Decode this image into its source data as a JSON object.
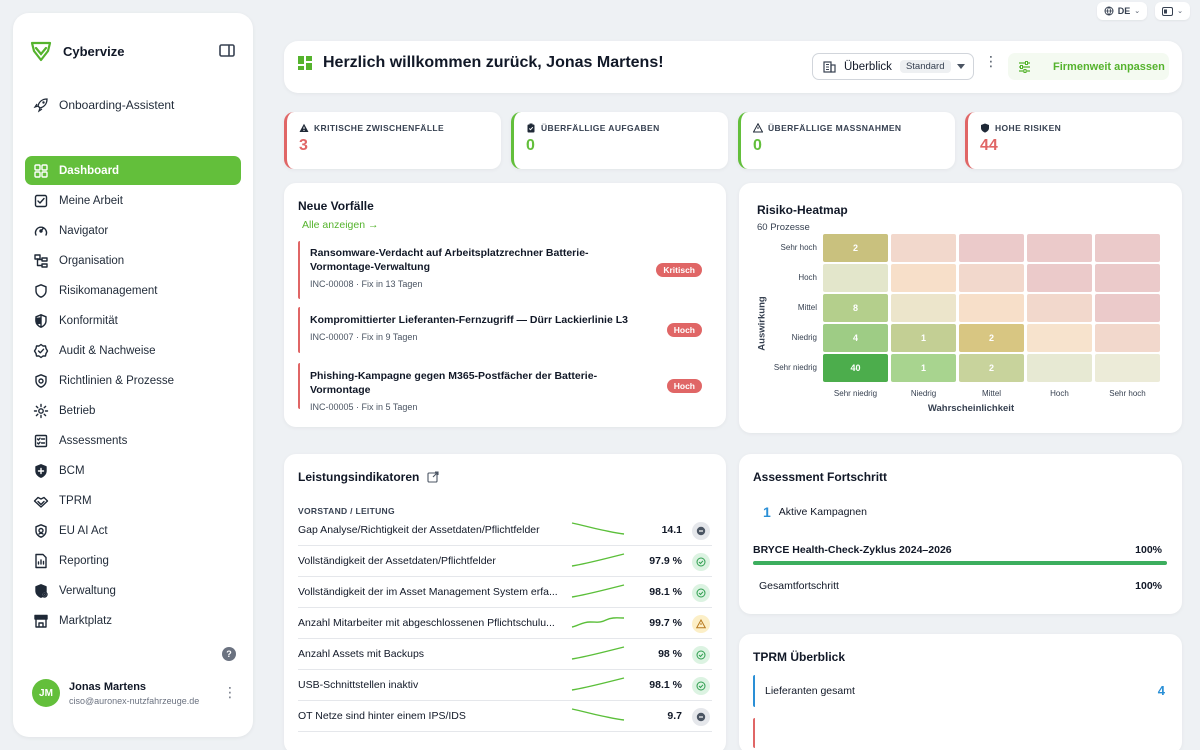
{
  "topbar": {
    "language": "DE"
  },
  "brand": {
    "name": "Cybervize"
  },
  "sidebar": {
    "onboarding": "Onboarding-Assistent",
    "items": [
      {
        "label": "Dashboard",
        "icon": "grid-icon"
      },
      {
        "label": "Meine Arbeit",
        "icon": "checklist-icon"
      },
      {
        "label": "Navigator",
        "icon": "compass-icon"
      },
      {
        "label": "Organisation",
        "icon": "org-chart-icon"
      },
      {
        "label": "Risikomanagement",
        "icon": "shield-icon"
      },
      {
        "label": "Konformität",
        "icon": "shield-half-icon"
      },
      {
        "label": "Audit & Nachweise",
        "icon": "badge-check-icon"
      },
      {
        "label": "Richtlinien & Prozesse",
        "icon": "policy-icon"
      },
      {
        "label": "Betrieb",
        "icon": "cog-icon"
      },
      {
        "label": "Assessments",
        "icon": "clipboard-icon"
      },
      {
        "label": "BCM",
        "icon": "shield-plus-icon"
      },
      {
        "label": "TPRM",
        "icon": "handshake-icon"
      },
      {
        "label": "EU AI Act",
        "icon": "ai-shield-icon"
      },
      {
        "label": "Reporting",
        "icon": "report-icon"
      },
      {
        "label": "Verwaltung",
        "icon": "admin-icon"
      },
      {
        "label": "Marktplatz",
        "icon": "store-icon"
      }
    ],
    "help": "?",
    "user": {
      "initials": "JM",
      "name": "Jonas Martens",
      "email": "ciso@auronex-nutzfahrzeuge.de"
    }
  },
  "header": {
    "title": "Herzlich willkommen zurück, Jonas Martens!",
    "view_label": "Überblick",
    "view_badge": "Standard",
    "customize_label": "Firmenweit anpassen"
  },
  "kpis": [
    {
      "label": "KRITISCHE ZWISCHENFÄLLE",
      "value": "3",
      "color": "#e06666",
      "icon": "warning-icon"
    },
    {
      "label": "ÜBERFÄLLIGE AUFGABEN",
      "value": "0",
      "color": "#63bf3b",
      "icon": "clipboard-icon"
    },
    {
      "label": "ÜBERFÄLLIGE MASSNAHMEN",
      "value": "0",
      "color": "#63bf3b",
      "icon": "warning-outline-icon"
    },
    {
      "label": "HOHE RISIKEN",
      "value": "44",
      "color": "#e06666",
      "icon": "shield-icon"
    }
  ],
  "incidents": {
    "title": "Neue Vorfälle",
    "link": "Alle anzeigen →",
    "items": [
      {
        "title": "Ransomware-Verdacht auf Arbeitsplatzrechner Batterie-Vormontage-Verwaltung",
        "meta": "INC-00008 · Fix in 13 Tagen",
        "badge": "Kritisch"
      },
      {
        "title": "Kompromittierter Lieferanten-Fernzugriff — Dürr Lackierlinie L3",
        "meta": "INC-00007 · Fix in 9 Tagen",
        "badge": "Hoch"
      },
      {
        "title": "Phishing-Kampagne gegen M365-Postfächer der Batterie-Vormontage",
        "meta": "INC-00005 · Fix in 5 Tagen",
        "badge": "Hoch"
      }
    ]
  },
  "heatmap": {
    "title": "Risiko-Heatmap",
    "subtitle": "60 Prozesse",
    "y_title": "Auswirkung",
    "x_title": "Wahrscheinlichkeit",
    "rows": [
      "Sehr hoch",
      "Hoch",
      "Mittel",
      "Niedrig",
      "Sehr niedrig"
    ],
    "cols": [
      "Sehr niedrig",
      "Niedrig",
      "Mittel",
      "Hoch",
      "Sehr hoch"
    ],
    "cells": [
      [
        {
          "v": "2",
          "c": "#c9c17e"
        },
        {
          "v": "",
          "c": "#f2d8cc"
        },
        {
          "v": "",
          "c": "#ebcaca"
        },
        {
          "v": "",
          "c": "#ebcaca"
        },
        {
          "v": "",
          "c": "#ebcaca"
        }
      ],
      [
        {
          "v": "",
          "c": "#e3e6cb"
        },
        {
          "v": "",
          "c": "#f7dfc9"
        },
        {
          "v": "",
          "c": "#f2d8cc"
        },
        {
          "v": "",
          "c": "#ebcaca"
        },
        {
          "v": "",
          "c": "#ebcaca"
        }
      ],
      [
        {
          "v": "8",
          "c": "#b4cf8c"
        },
        {
          "v": "",
          "c": "#ece5cb"
        },
        {
          "v": "",
          "c": "#f7dfc9"
        },
        {
          "v": "",
          "c": "#f2d8cc"
        },
        {
          "v": "",
          "c": "#ebcaca"
        }
      ],
      [
        {
          "v": "4",
          "c": "#9ecc85"
        },
        {
          "v": "1",
          "c": "#c3cf94"
        },
        {
          "v": "2",
          "c": "#d8c682"
        },
        {
          "v": "",
          "c": "#f7e3cd"
        },
        {
          "v": "",
          "c": "#f2d8cc"
        }
      ],
      [
        {
          "v": "40",
          "c": "#4cad4c"
        },
        {
          "v": "1",
          "c": "#a8d48f"
        },
        {
          "v": "2",
          "c": "#c8d39c"
        },
        {
          "v": "",
          "c": "#e7e9d3"
        },
        {
          "v": "",
          "c": "#ecebd8"
        }
      ]
    ]
  },
  "indicators": {
    "title": "Leistungsindikatoren",
    "section": "VORSTAND / LEITUNG",
    "rows": [
      {
        "name": "Gap Analyse/Richtigkeit der Assetdaten/Pflichtfelder",
        "value": "14.1",
        "status": "neutral",
        "trend": "down"
      },
      {
        "name": "Vollständigkeit der Assetdaten/Pflichtfelder",
        "value": "97.9 %",
        "status": "ok",
        "trend": "up"
      },
      {
        "name": "Vollständigkeit der im Asset Management System erfa...",
        "value": "98.1 %",
        "status": "ok",
        "trend": "up"
      },
      {
        "name": "Anzahl Mitarbeiter mit abgeschlossenen Pflichtschulu...",
        "value": "99.7 %",
        "status": "warn",
        "trend": "wave"
      },
      {
        "name": "Anzahl Assets mit Backups",
        "value": "98 %",
        "status": "ok",
        "trend": "up"
      },
      {
        "name": "USB-Schnittstellen inaktiv",
        "value": "98.1 %",
        "status": "ok",
        "trend": "up"
      },
      {
        "name": "OT Netze sind hinter einem IPS/IDS",
        "value": "9.7",
        "status": "neutral",
        "trend": "down"
      }
    ]
  },
  "assessment": {
    "title": "Assessment Fortschritt",
    "active_count": "1",
    "active_label": "Aktive Kampagnen",
    "campaign": "BRYCE Health-Check-Zyklus 2024–2026",
    "campaign_pct": "100%",
    "progress": 1.0,
    "total_label": "Gesamtfortschritt",
    "total_pct": "100%"
  },
  "tprm": {
    "title": "TPRM Überblick",
    "suppliers_label": "Lieferanten gesamt",
    "suppliers_count": "4"
  }
}
